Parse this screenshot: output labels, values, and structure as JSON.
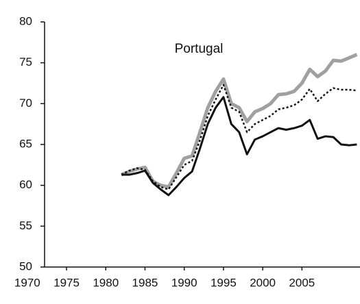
{
  "chart_data": {
    "type": "line",
    "annotation": "Portugal",
    "x": [
      1982,
      1983,
      1984,
      1985,
      1986,
      1987,
      1988,
      1989,
      1990,
      1991,
      1992,
      1993,
      1994,
      1995,
      1996,
      1997,
      1998,
      1999,
      2000,
      2001,
      2002,
      2003,
      2004,
      2005,
      2006,
      2007,
      2008,
      2009,
      2010,
      2011,
      2012
    ],
    "series": [
      {
        "color": "#a0a0a0",
        "style": "thick",
        "values": [
          61.3,
          61.7,
          62.0,
          62.2,
          60.5,
          60.0,
          59.8,
          61.5,
          63.3,
          63.6,
          66.5,
          69.5,
          71.5,
          73.0,
          70.0,
          69.5,
          67.8,
          69.0,
          69.4,
          70.0,
          71.1,
          71.2,
          71.5,
          72.5,
          74.2,
          73.3,
          74.0,
          75.3,
          75.2,
          75.6,
          76.0
        ]
      },
      {
        "color": "#111111",
        "style": "dotted",
        "values": [
          61.3,
          61.8,
          62.1,
          61.9,
          60.5,
          59.8,
          59.5,
          61.0,
          62.5,
          63.0,
          65.5,
          68.5,
          70.5,
          72.3,
          69.5,
          69.0,
          66.5,
          67.5,
          68.0,
          68.5,
          69.3,
          69.5,
          69.8,
          70.5,
          71.8,
          70.3,
          71.2,
          71.9,
          71.7,
          71.7,
          71.6
        ]
      },
      {
        "color": "#111111",
        "style": "solid",
        "values": [
          61.3,
          61.3,
          61.5,
          61.8,
          60.3,
          59.5,
          58.8,
          59.8,
          60.9,
          61.7,
          64.5,
          67.5,
          69.5,
          70.8,
          67.5,
          66.5,
          63.8,
          65.6,
          66.0,
          66.5,
          67.0,
          66.8,
          67.0,
          67.3,
          68.0,
          65.7,
          66.0,
          65.9,
          65.0,
          64.9,
          65.0
        ]
      }
    ],
    "xlim": [
      1972.2,
      2012.4
    ],
    "xticks": [
      1970,
      1975,
      1980,
      1985,
      1990,
      1995,
      2000,
      2005
    ],
    "ylim": [
      50,
      80
    ],
    "yticks": [
      50,
      55,
      60,
      65,
      70,
      75,
      80
    ]
  }
}
